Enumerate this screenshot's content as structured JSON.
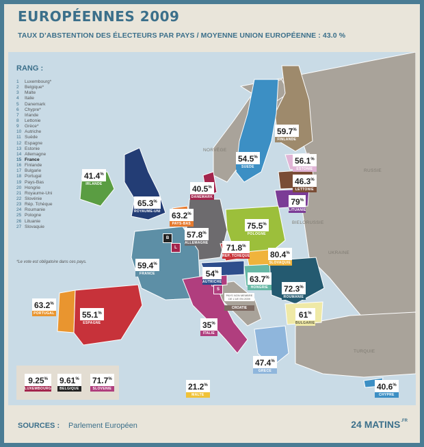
{
  "title": "EUROPÉENNES 2009",
  "subtitle": "TAUX D’ABSTENTION DES ÉLECTEURS PAR PAYS / MOYENNE UNION EUROPÉENNE : 43.0 %",
  "legend": {
    "title": "RANG :",
    "ranks": [
      {
        "rank": "1",
        "country": "Luxembourg*"
      },
      {
        "rank": "2",
        "country": "Belgique*"
      },
      {
        "rank": "3",
        "country": "Malte"
      },
      {
        "rank": "4",
        "country": "Italie"
      },
      {
        "rank": "5",
        "country": "Danemark"
      },
      {
        "rank": "6",
        "country": "Chypre*"
      },
      {
        "rank": "7",
        "country": "Irlande"
      },
      {
        "rank": "8",
        "country": "Lettonie"
      },
      {
        "rank": "9",
        "country": "Grèce*"
      },
      {
        "rank": "10",
        "country": "Autriche"
      },
      {
        "rank": "11",
        "country": "Suède"
      },
      {
        "rank": "12",
        "country": "Espagne"
      },
      {
        "rank": "13",
        "country": "Estonie"
      },
      {
        "rank": "14",
        "country": "Allemagne"
      },
      {
        "rank": "15",
        "country": "France"
      },
      {
        "rank": "16",
        "country": "Finlande"
      },
      {
        "rank": "17",
        "country": "Bulgarie"
      },
      {
        "rank": "18",
        "country": "Portugal"
      },
      {
        "rank": "19",
        "country": "Pays-Bas"
      },
      {
        "rank": "20",
        "country": "Hongrie"
      },
      {
        "rank": "21",
        "country": "Royaume-Uni"
      },
      {
        "rank": "22",
        "country": "Slovénie"
      },
      {
        "rank": "23",
        "country": "Rép. Tchèque"
      },
      {
        "rank": "24",
        "country": "Roumanie"
      },
      {
        "rank": "25",
        "country": "Pologne"
      },
      {
        "rank": "26",
        "country": "Lituanie"
      },
      {
        "rank": "27",
        "country": "Slovaquie"
      }
    ],
    "note": "*Le vote est obligatoire dans ces pays."
  },
  "map_labels": {
    "norvege": "NORVÈGE",
    "russie": "RUSSIE",
    "bielorussie": "BIELORUSSIE",
    "ukraine": "UKRAINE",
    "turquie": "TURQUIE"
  },
  "countries": {
    "finlande": {
      "value": "59.7",
      "name": "FINLANDE",
      "color": "#9e8a6c"
    },
    "suede": {
      "value": "54.5",
      "name": "SUEDE",
      "color": "#3c8fc4"
    },
    "estonie": {
      "value": "56.1",
      "name": "ESTONIE",
      "color": "#e0b5d6"
    },
    "lettonie": {
      "value": "46.3",
      "name": "LETTONIE",
      "color": "#7a4d36"
    },
    "lituanie": {
      "value": "79",
      "name": "LITUANIE",
      "color": "#7b3c96"
    },
    "irlande": {
      "value": "41.4",
      "name": "IRLANDE",
      "color": "#5a9d42"
    },
    "royaume_uni": {
      "value": "65.3",
      "name": "ROYAUME-UNI",
      "color": "#233d75"
    },
    "danemark": {
      "value": "40.5",
      "name": "DANEMARK",
      "color": "#a3244c"
    },
    "pays_bas": {
      "value": "63.2",
      "name": "PAYS-BAS",
      "color": "#e67a2e"
    },
    "allemagne": {
      "value": "57.8",
      "name": "ALLEMAGNE",
      "color": "#6d6b6e"
    },
    "pologne": {
      "value": "75.5",
      "name": "POLOGNE",
      "color": "#9cbf3b"
    },
    "rep_tcheque": {
      "value": "71.8",
      "name": "REP. TCHEQUE",
      "color": "#c8353b"
    },
    "slovaquie": {
      "value": "80.4",
      "name": "SLOVAQUIE",
      "color": "#f0b33c"
    },
    "france": {
      "value": "59.4",
      "name": "FRANCE",
      "color": "#5d8fa6"
    },
    "autriche": {
      "value": "54",
      "name": "AUTRICHE",
      "color": "#2d4e8c"
    },
    "hongrie": {
      "value": "63.7",
      "name": "HONGRIE",
      "color": "#67b8a5"
    },
    "roumanie": {
      "value": "72.3",
      "name": "ROUMANIE",
      "color": "#245a70"
    },
    "portugal": {
      "value": "63.2",
      "name": "PORTUGAL",
      "color": "#e9952f"
    },
    "espagne": {
      "value": "55.1",
      "name": "ESPAGNE",
      "color": "#c7323a"
    },
    "italie": {
      "value": "35",
      "name": "ITALIE",
      "color": "#b03e7e"
    },
    "bulgarie": {
      "value": "61",
      "name": "BULGARIE",
      "color": "#efe9a6"
    },
    "grece": {
      "value": "47.4",
      "name": "GRECE",
      "color": "#8fb6dc"
    },
    "malte": {
      "value": "21.2",
      "name": "MALTE",
      "color": "#f0c238"
    },
    "chypre": {
      "value": "40.6",
      "name": "CHYPRE",
      "color": "#3c8fc4"
    },
    "luxembourg": {
      "value": "9.25",
      "name": "LUXEMBOURG",
      "color": "#a3244c"
    },
    "belgique": {
      "value": "9.61",
      "name": "BELGIQUE",
      "color": "#222222"
    },
    "slovenie": {
      "value": "71.7",
      "name": "SLOVENIE",
      "color": "#b03e7e"
    }
  },
  "mini_labels": {
    "b": "B",
    "l": "L",
    "s": "S"
  },
  "croatia": {
    "note": "PAYS NON MEMBRE DE L’UE EN 2009",
    "name": "CROATIE"
  },
  "percent": "%",
  "sources": {
    "label": "SOURCES :",
    "value": "Parlement Européen"
  },
  "logo": {
    "text": "24 MATINS",
    "suffix": ".FR"
  }
}
